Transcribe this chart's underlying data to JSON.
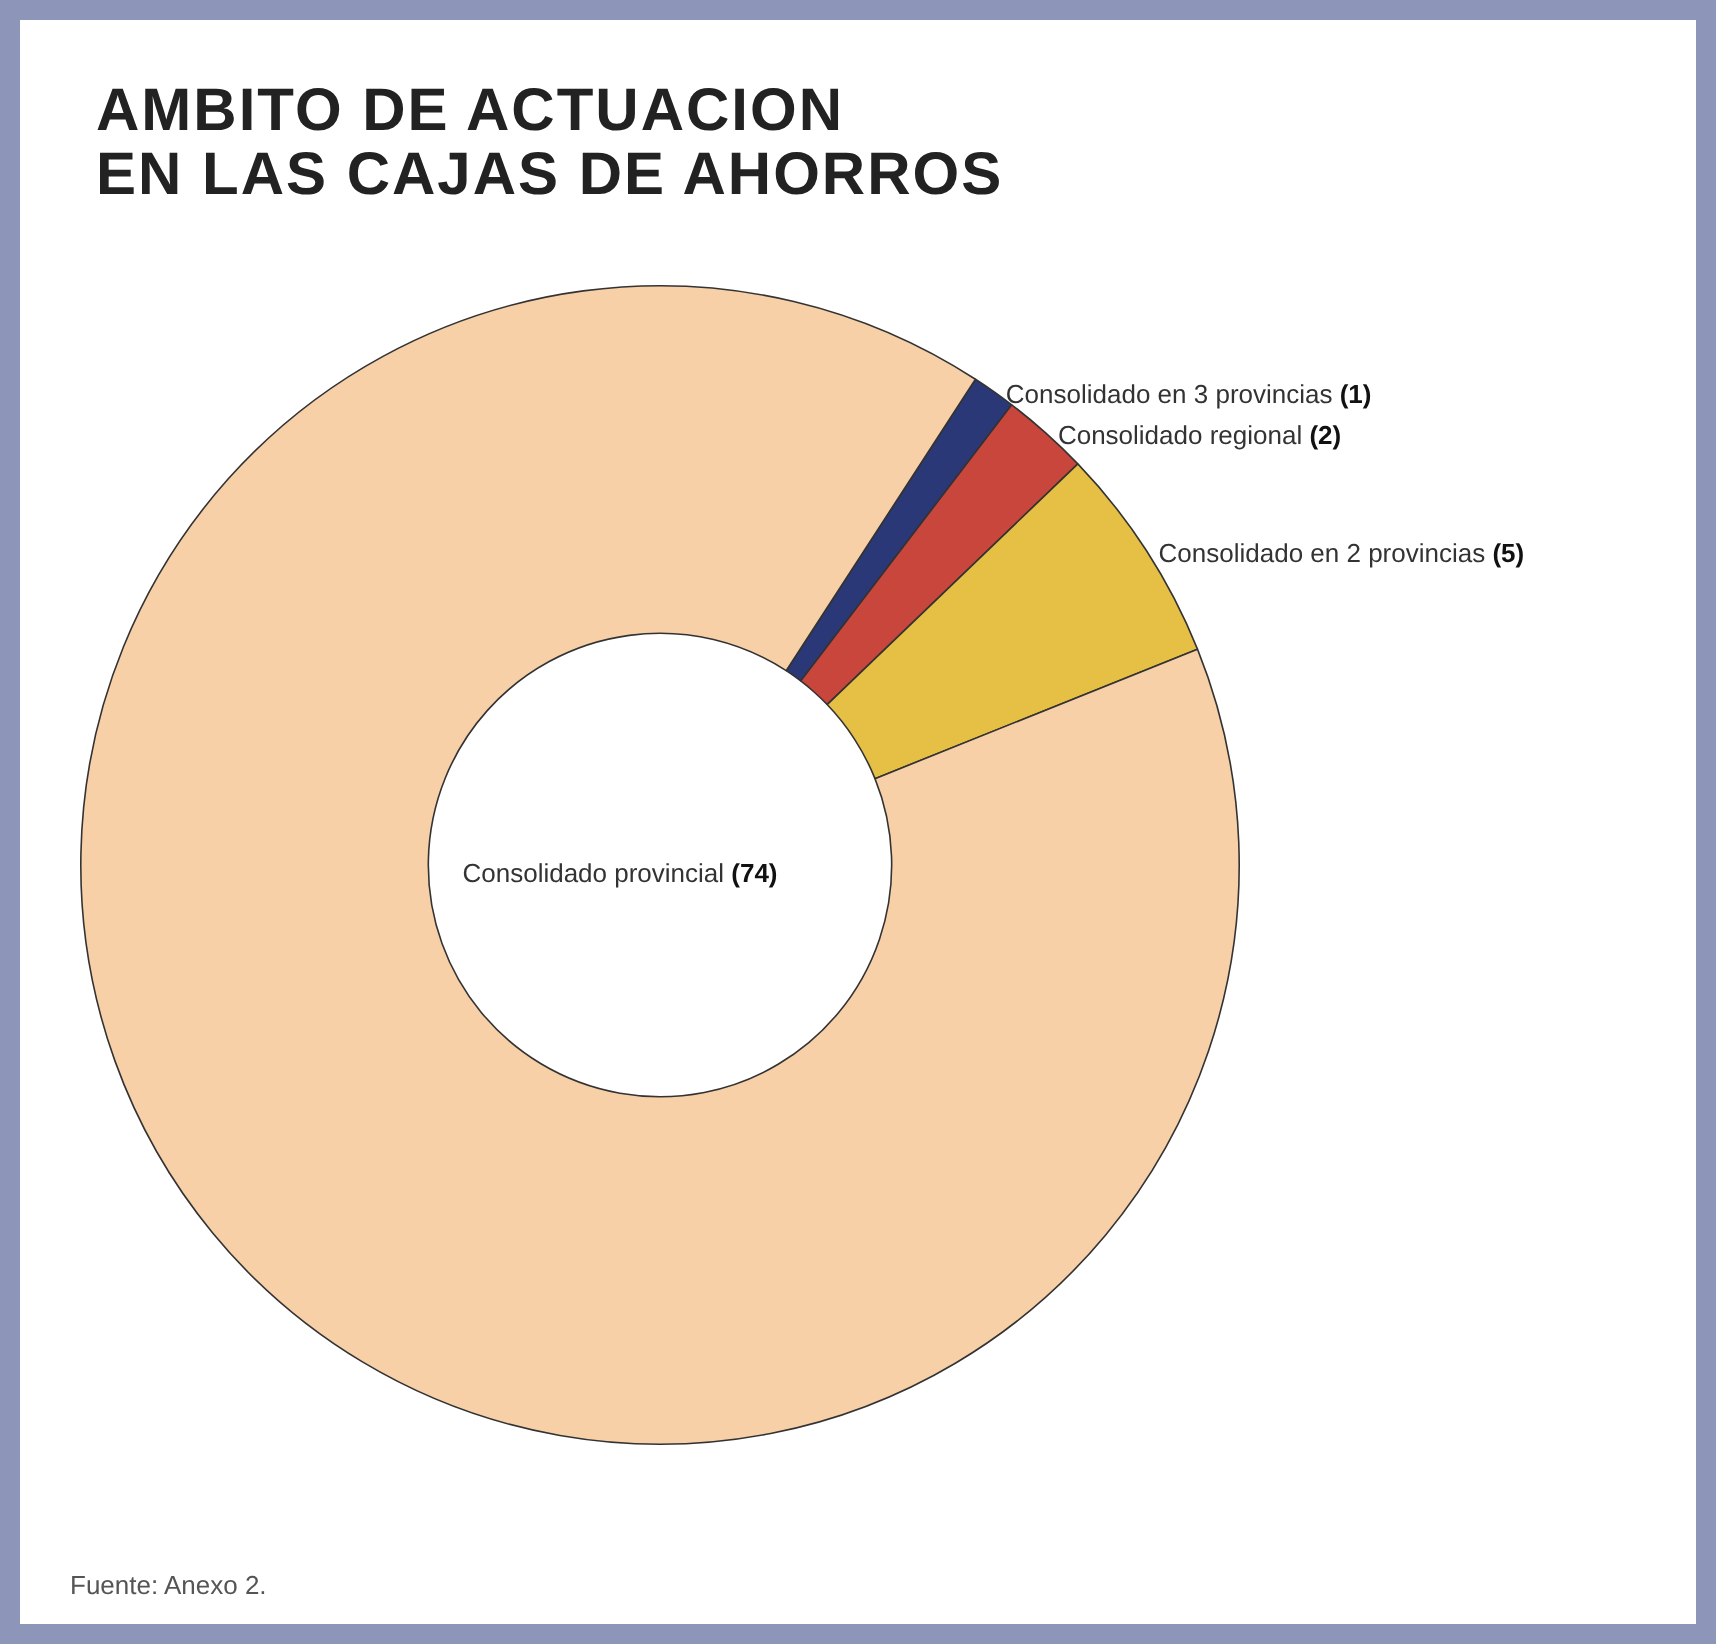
{
  "chart_data": {
    "type": "donut",
    "title": "AMBITO DE ACTUACION\nEN LAS CAJAS DE AHORROS",
    "categories": [
      "Consolidado en 3 provincias",
      "Consolidado regional",
      "Consolidado en 2 provincias",
      "Consolidado provincial"
    ],
    "values": [
      1,
      2,
      5,
      74
    ],
    "value_labels": [
      "(1)",
      "(2)",
      "(5)",
      "(74)"
    ],
    "colors": [
      "#2b3878",
      "#c9463c",
      "#e6bf45",
      "#f8d0a8"
    ],
    "legend": false,
    "annotations": [
      "Fuente: Anexo 2."
    ]
  }
}
